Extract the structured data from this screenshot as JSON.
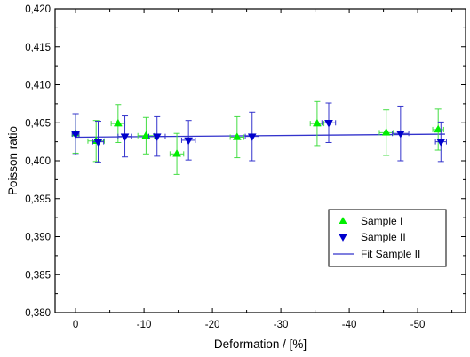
{
  "chart_data": {
    "type": "scatter",
    "title": "",
    "xlabel": "Deformation / [%]",
    "ylabel": "Poisson ratio",
    "xlim": [
      3,
      -57
    ],
    "ylim": [
      0.38,
      0.42
    ],
    "x_ticks": [
      0,
      -10,
      -20,
      -30,
      -40,
      -50
    ],
    "x_tick_labels": [
      "0",
      "-10",
      "-20",
      "-30",
      "-40",
      "-50"
    ],
    "y_ticks": [
      0.38,
      0.385,
      0.39,
      0.395,
      0.4,
      0.405,
      0.41,
      0.415,
      0.42
    ],
    "y_tick_labels": [
      "0,380",
      "0,385",
      "0,390",
      "0,395",
      "0,400",
      "0,405",
      "0,410",
      "0,415",
      "0,420"
    ],
    "legend_position": "bottom-right",
    "grid": false,
    "series": [
      {
        "name": "Sample I",
        "marker": "triangle-up",
        "color": "#00ee00",
        "points": [
          {
            "x": 0.0,
            "y": 0.4036,
            "yerr": 0.0026,
            "xerr": 0.5
          },
          {
            "x": -3.0,
            "y": 0.4026,
            "yerr": 0.0027,
            "xerr": 1.2
          },
          {
            "x": -6.2,
            "y": 0.4049,
            "yerr": 0.0025,
            "xerr": 1.0
          },
          {
            "x": -10.3,
            "y": 0.4033,
            "yerr": 0.0024,
            "xerr": 1.2
          },
          {
            "x": -14.8,
            "y": 0.4009,
            "yerr": 0.0027,
            "xerr": 1.0
          },
          {
            "x": -23.6,
            "y": 0.4031,
            "yerr": 0.0027,
            "xerr": 1.0
          },
          {
            "x": -35.3,
            "y": 0.4049,
            "yerr": 0.0029,
            "xerr": 1.0
          },
          {
            "x": -45.4,
            "y": 0.4037,
            "yerr": 0.003,
            "xerr": 1.0
          },
          {
            "x": -53.0,
            "y": 0.4041,
            "yerr": 0.0027,
            "xerr": 0.8
          }
        ]
      },
      {
        "name": "Sample II",
        "marker": "triangle-down",
        "color": "#0000cc",
        "points": [
          {
            "x": 0.0,
            "y": 0.4035,
            "yerr": 0.0027,
            "xerr": 0.5
          },
          {
            "x": -3.3,
            "y": 0.4025,
            "yerr": 0.0027,
            "xerr": 0.8
          },
          {
            "x": -7.2,
            "y": 0.4032,
            "yerr": 0.0027,
            "xerr": 1.0
          },
          {
            "x": -11.9,
            "y": 0.4032,
            "yerr": 0.0026,
            "xerr": 1.2
          },
          {
            "x": -16.5,
            "y": 0.4027,
            "yerr": 0.0026,
            "xerr": 1.0
          },
          {
            "x": -25.8,
            "y": 0.4032,
            "yerr": 0.0032,
            "xerr": 1.0
          },
          {
            "x": -37.0,
            "y": 0.405,
            "yerr": 0.0026,
            "xerr": 1.0
          },
          {
            "x": -47.5,
            "y": 0.4036,
            "yerr": 0.0036,
            "xerr": 1.2
          },
          {
            "x": -53.4,
            "y": 0.4025,
            "yerr": 0.0026,
            "xerr": 0.8
          }
        ]
      },
      {
        "name": "Fit Sample II",
        "type": "line",
        "color": "#3333cc",
        "x": [
          0,
          -54
        ],
        "y": [
          0.4031,
          0.4035
        ]
      }
    ]
  }
}
